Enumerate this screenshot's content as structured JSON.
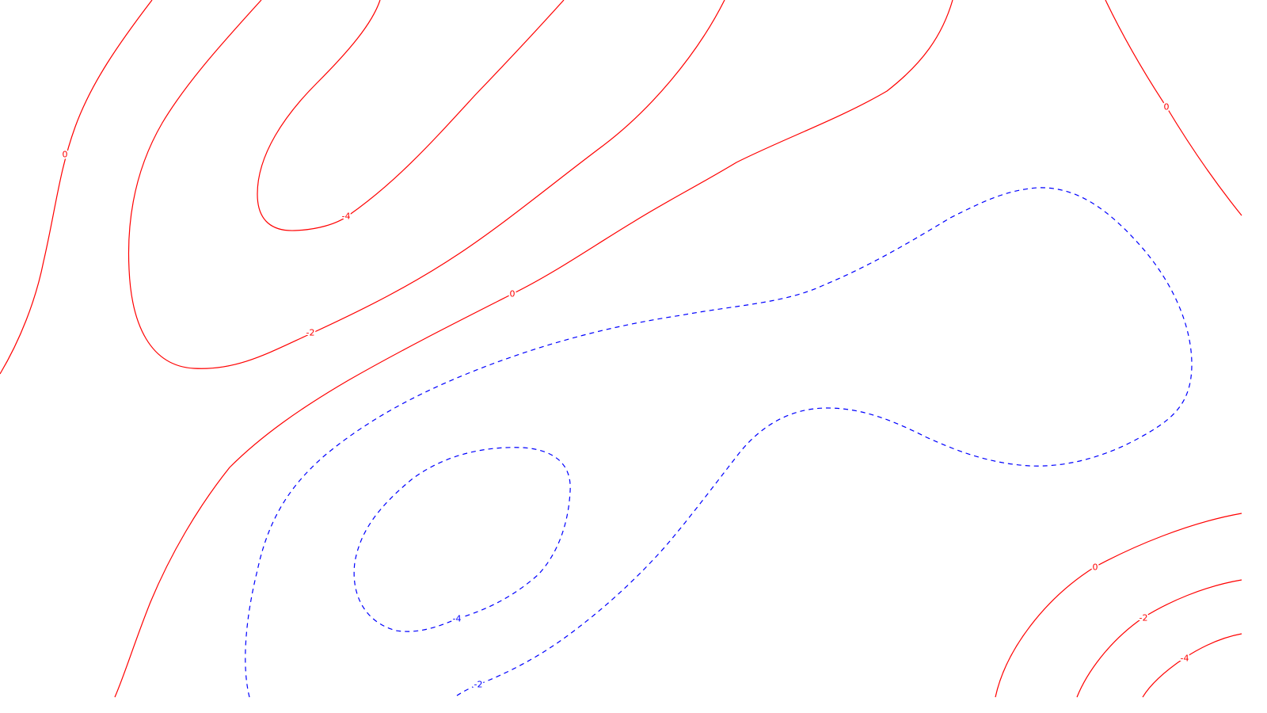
{
  "chart_data": {
    "type": "contour",
    "colors": {
      "positive": "#ff0000",
      "negative": "#0000ff",
      "background": "#ffffff"
    },
    "line_styles": {
      "positive": "solid",
      "negative": "dashed"
    },
    "contours": [
      {
        "id": "red-0-left",
        "level": 0,
        "color": "positive",
        "label": "0"
      },
      {
        "id": "red-minus2-left",
        "level": -2,
        "color": "positive",
        "label": "-2"
      },
      {
        "id": "red-minus4-top",
        "level": -4,
        "color": "positive",
        "label": "-4"
      },
      {
        "id": "red-0-main",
        "level": 0,
        "color": "positive",
        "label": "0"
      },
      {
        "id": "red-0-topright",
        "level": 0,
        "color": "positive",
        "label": "0"
      },
      {
        "id": "red-0-bottomright",
        "level": 0,
        "color": "positive",
        "label": "0"
      },
      {
        "id": "red-minus2-bottomright",
        "level": -2,
        "color": "positive",
        "label": "-2"
      },
      {
        "id": "red-minus4-bottomright",
        "level": -4,
        "color": "positive",
        "label": "-4"
      },
      {
        "id": "blue-minus2",
        "level": -2,
        "color": "negative",
        "label": "-2"
      },
      {
        "id": "blue-minus4",
        "level": -4,
        "color": "negative",
        "label": "-4"
      }
    ]
  }
}
